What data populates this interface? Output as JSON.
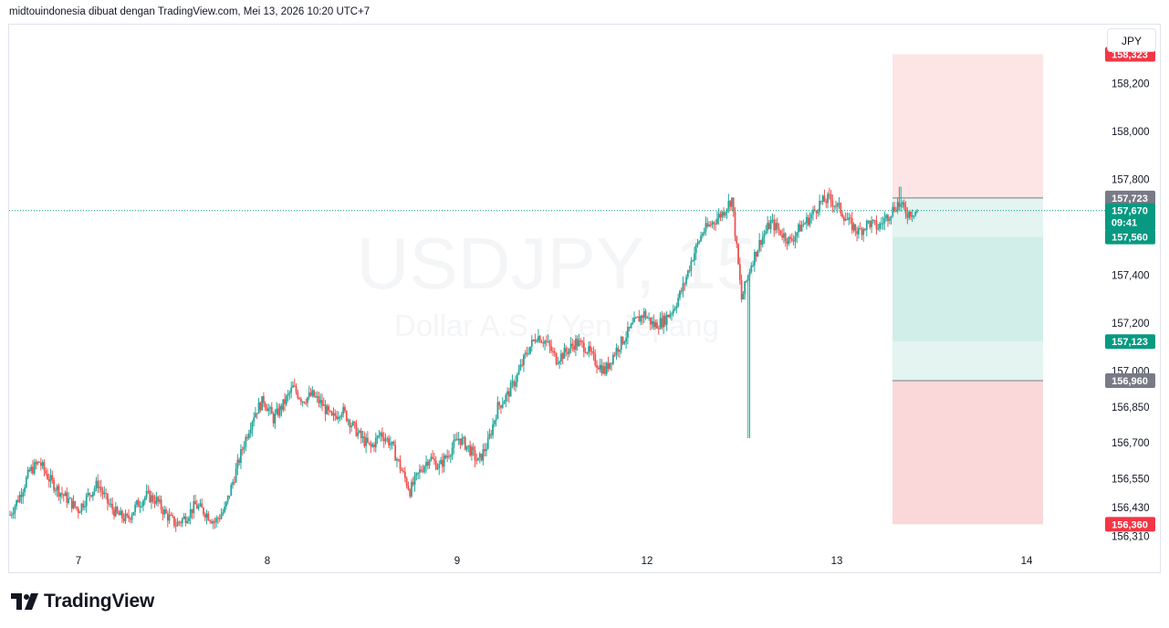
{
  "header": {
    "text": "midtouindonesia dibuat dengan TradingView.com, Mei 13, 2026 10:20 UTC+7"
  },
  "currency_button": {
    "label": "JPY"
  },
  "brand": {
    "name": "TradingView"
  },
  "watermark": {
    "symbol": "USDJPY, 15",
    "description": "Dollar A.S. / Yen Jepang"
  },
  "colors": {
    "up": "#26a69a",
    "down": "#ef5350",
    "stop_zone": "#fde5e6",
    "target_zone": "#d2eee9",
    "target_light": "#e3f4f1",
    "last_price": "#089981",
    "stop_label": "#f23645",
    "grey_label": "#787b86"
  },
  "chart_data": {
    "type": "candlestick",
    "symbol": "USDJPY",
    "timeframe": "15",
    "y_ticks": [
      "158,200",
      "158,000",
      "157,800",
      "157,400",
      "157,200",
      "157,000",
      "156,850",
      "156,700",
      "156,550",
      "156,430",
      "156,310"
    ],
    "ylim": [
      156.27,
      158.42
    ],
    "x_ticks": [
      "7",
      "8",
      "9",
      "12",
      "13",
      "14"
    ],
    "last_price": {
      "value": "157,670",
      "countdown": "09:41"
    },
    "position": {
      "type": "long",
      "stop_high": "158,323",
      "entry_top": "157,723",
      "entry": "157,560",
      "target_mid": "157,123",
      "target_low": "156,960",
      "stop_low": "156,360"
    },
    "series": [
      {
        "x": "7",
        "close": 156.4
      },
      {
        "x": "7",
        "close": 156.48
      },
      {
        "x": "7",
        "close": 156.58
      },
      {
        "x": "7",
        "close": 156.62
      },
      {
        "x": "7",
        "close": 156.55
      },
      {
        "x": "7",
        "close": 156.5
      },
      {
        "x": "7",
        "close": 156.46
      },
      {
        "x": "7",
        "close": 156.42
      },
      {
        "x": "7",
        "close": 156.48
      },
      {
        "x": "7",
        "close": 156.53
      },
      {
        "x": "7",
        "close": 156.45
      },
      {
        "x": "7",
        "close": 156.4
      },
      {
        "x": "7",
        "close": 156.38
      },
      {
        "x": "7",
        "close": 156.44
      },
      {
        "x": "7",
        "close": 156.48
      },
      {
        "x": "7",
        "close": 156.46
      },
      {
        "x": "7",
        "close": 156.4
      },
      {
        "x": "7",
        "close": 156.36
      },
      {
        "x": "7",
        "close": 156.39
      },
      {
        "x": "7",
        "close": 156.44
      },
      {
        "x": "7",
        "close": 156.41
      },
      {
        "x": "7",
        "close": 156.37
      },
      {
        "x": "8",
        "close": 156.42
      },
      {
        "x": "8",
        "close": 156.56
      },
      {
        "x": "8",
        "close": 156.7
      },
      {
        "x": "8",
        "close": 156.82
      },
      {
        "x": "8",
        "close": 156.88
      },
      {
        "x": "8",
        "close": 156.8
      },
      {
        "x": "8",
        "close": 156.86
      },
      {
        "x": "8",
        "close": 156.93
      },
      {
        "x": "8",
        "close": 156.88
      },
      {
        "x": "8",
        "close": 156.9
      },
      {
        "x": "8",
        "close": 156.86
      },
      {
        "x": "8",
        "close": 156.8
      },
      {
        "x": "8",
        "close": 156.84
      },
      {
        "x": "8",
        "close": 156.78
      },
      {
        "x": "8",
        "close": 156.72
      },
      {
        "x": "8",
        "close": 156.68
      },
      {
        "x": "8",
        "close": 156.74
      },
      {
        "x": "8",
        "close": 156.7
      },
      {
        "x": "9",
        "close": 156.6
      },
      {
        "x": "9",
        "close": 156.5
      },
      {
        "x": "9",
        "close": 156.58
      },
      {
        "x": "9",
        "close": 156.64
      },
      {
        "x": "9",
        "close": 156.6
      },
      {
        "x": "9",
        "close": 156.66
      },
      {
        "x": "9",
        "close": 156.72
      },
      {
        "x": "9",
        "close": 156.68
      },
      {
        "x": "9",
        "close": 156.62
      },
      {
        "x": "9",
        "close": 156.7
      },
      {
        "x": "9",
        "close": 156.85
      },
      {
        "x": "9",
        "close": 156.9
      },
      {
        "x": "9",
        "close": 156.98
      },
      {
        "x": "9",
        "close": 157.08
      },
      {
        "x": "9",
        "close": 157.15
      },
      {
        "x": "9",
        "close": 157.12
      },
      {
        "x": "9",
        "close": 157.05
      },
      {
        "x": "9",
        "close": 157.08
      },
      {
        "x": "9",
        "close": 157.12
      },
      {
        "x": "9",
        "close": 157.1
      },
      {
        "x": "9",
        "close": 157.04
      },
      {
        "x": "9",
        "close": 157.0
      },
      {
        "x": "12",
        "close": 157.08
      },
      {
        "x": "12",
        "close": 157.14
      },
      {
        "x": "12",
        "close": 157.2
      },
      {
        "x": "12",
        "close": 157.24
      },
      {
        "x": "12",
        "close": 157.19
      },
      {
        "x": "12",
        "close": 157.21
      },
      {
        "x": "12",
        "close": 157.26
      },
      {
        "x": "12",
        "close": 157.35
      },
      {
        "x": "12",
        "close": 157.48
      },
      {
        "x": "12",
        "close": 157.58
      },
      {
        "x": "12",
        "close": 157.62
      },
      {
        "x": "12",
        "close": 157.66
      },
      {
        "x": "12",
        "close": 157.72
      },
      {
        "x": "12",
        "close": 157.3
      },
      {
        "x": "12",
        "close": 157.45
      },
      {
        "x": "12",
        "close": 157.55
      },
      {
        "x": "12",
        "close": 157.62
      },
      {
        "x": "12",
        "close": 157.58
      },
      {
        "x": "12",
        "close": 157.54
      },
      {
        "x": "12",
        "close": 157.6
      },
      {
        "x": "12",
        "close": 157.64
      },
      {
        "x": "12",
        "close": 157.7
      },
      {
        "x": "13",
        "close": 157.72
      },
      {
        "x": "13",
        "close": 157.68
      },
      {
        "x": "13",
        "close": 157.62
      },
      {
        "x": "13",
        "close": 157.58
      },
      {
        "x": "13",
        "close": 157.62
      },
      {
        "x": "13",
        "close": 157.6
      },
      {
        "x": "13",
        "close": 157.65
      },
      {
        "x": "13",
        "close": 157.7
      },
      {
        "x": "13",
        "close": 157.66
      },
      {
        "x": "13",
        "close": 157.67
      }
    ]
  }
}
